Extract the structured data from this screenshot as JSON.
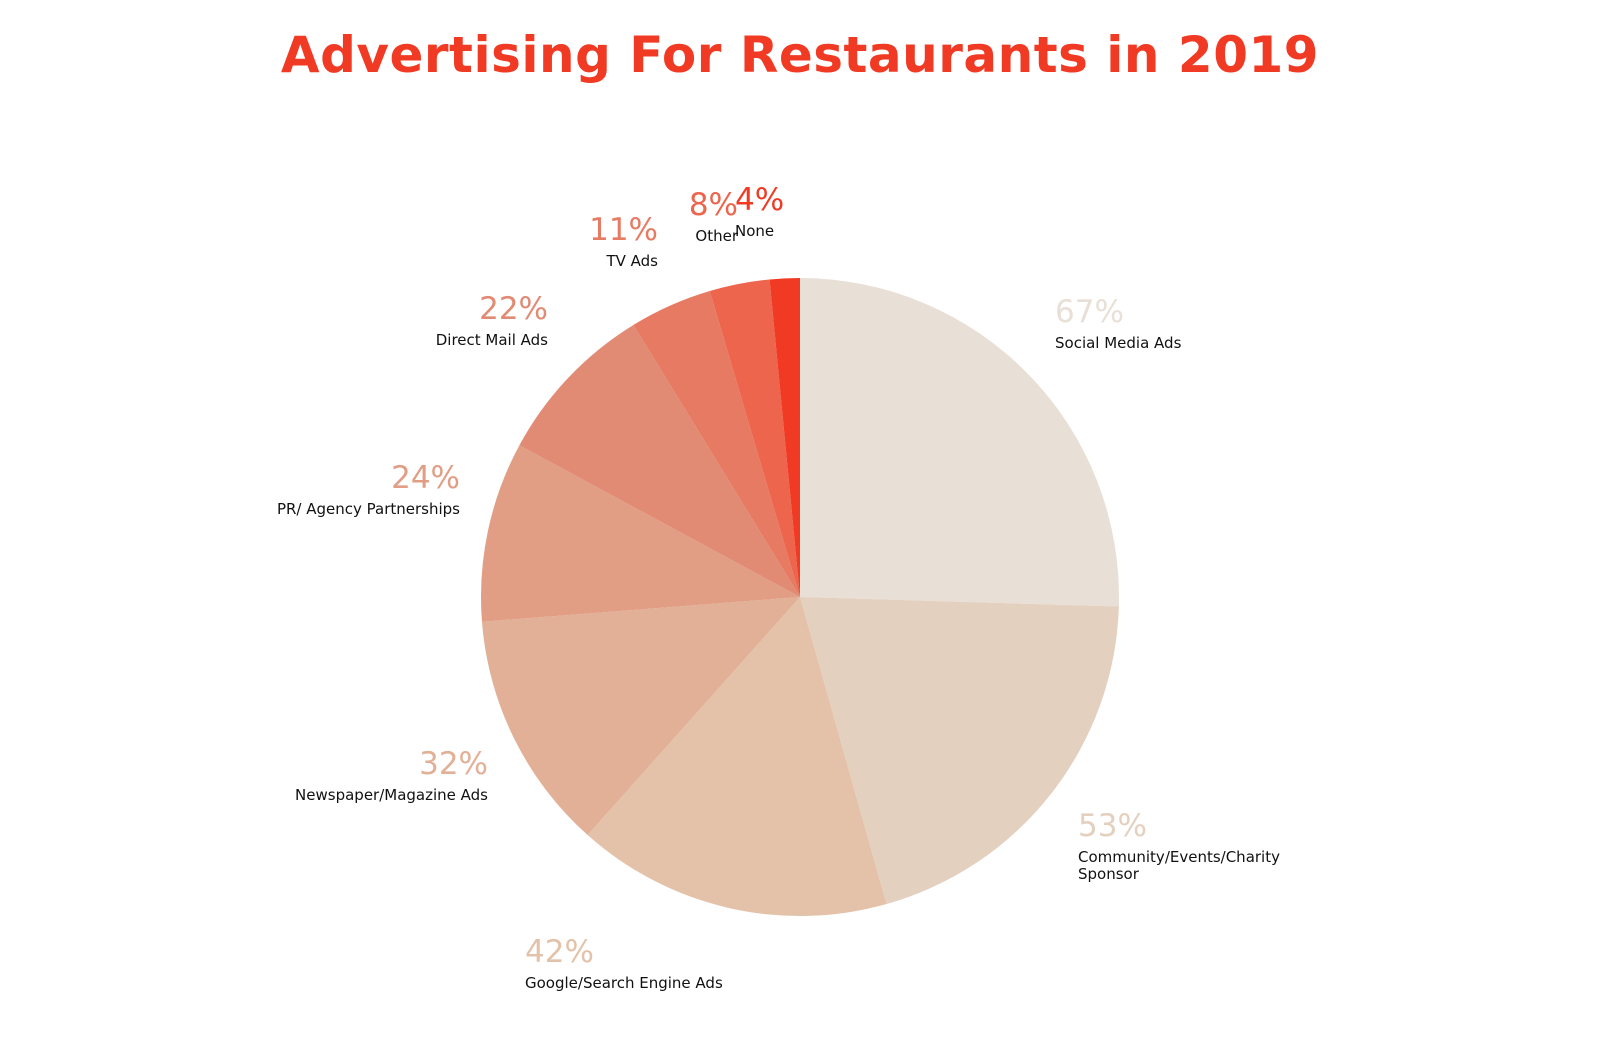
{
  "chart_data": {
    "type": "pie",
    "title": "Advertising For Restaurants in 2019",
    "start_angle_deg": 0,
    "direction": "clockwise",
    "slices": [
      {
        "label_lines": [
          "Social Media Ads"
        ],
        "value": 67,
        "value_label": "67%",
        "color": "#e8e0d6"
      },
      {
        "label_lines": [
          "Community/Events/Charity",
          "Sponsor"
        ],
        "value": 53,
        "value_label": "53%",
        "color": "#e4d0bf"
      },
      {
        "label_lines": [
          "Google/Search Engine Ads"
        ],
        "value": 42,
        "value_label": "42%",
        "color": "#e3c2a9"
      },
      {
        "label_lines": [
          "Newspaper/Magazine Ads"
        ],
        "value": 32,
        "value_label": "32%",
        "color": "#e1b096"
      },
      {
        "label_lines": [
          "PR/ Agency Partnerships"
        ],
        "value": 24,
        "value_label": "24%",
        "color": "#e19e85"
      },
      {
        "label_lines": [
          "Direct Mail Ads"
        ],
        "value": 22,
        "value_label": "22%",
        "color": "#e18a74"
      },
      {
        "label_lines": [
          "TV Ads"
        ],
        "value": 11,
        "value_label": "11%",
        "color": "#e67a62"
      },
      {
        "label_lines": [
          "Other"
        ],
        "value": 8,
        "value_label": "8%",
        "color": "#ec654c"
      },
      {
        "label_lines": [
          "None"
        ],
        "value": 4,
        "value_label": "4%",
        "color": "#f03a24"
      }
    ]
  }
}
